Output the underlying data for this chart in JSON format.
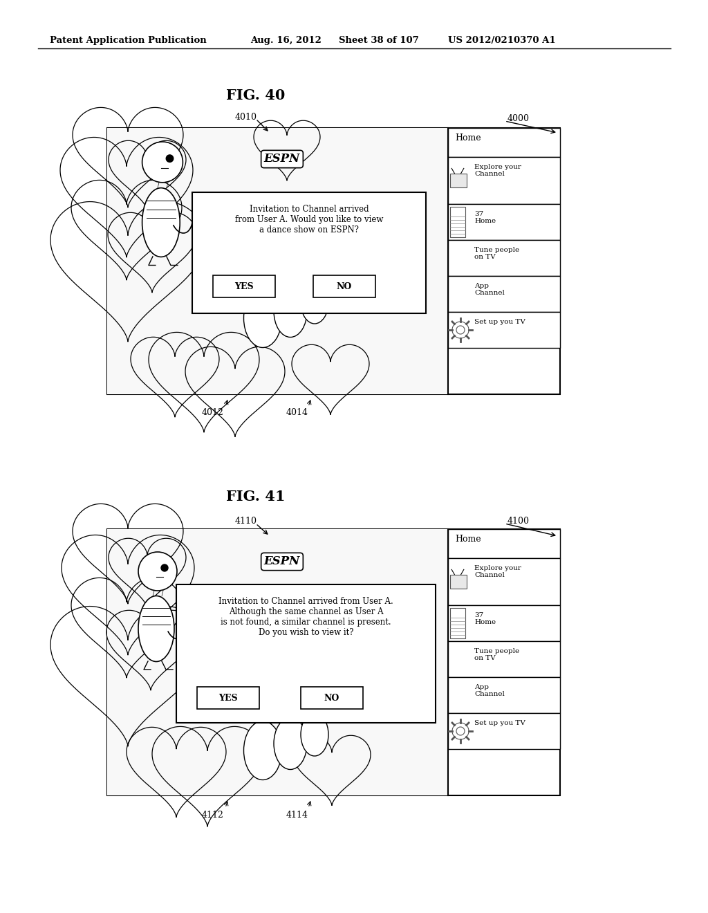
{
  "bg_color": "#ffffff",
  "header_text": "Patent Application Publication",
  "header_date": "Aug. 16, 2012",
  "header_sheet": "Sheet 38 of 107",
  "header_patent": "US 2012/0210370 A1",
  "fig40_title": "FIG. 40",
  "fig41_title": "FIG. 41",
  "fig40_label": "4000",
  "fig40_sublabel1": "4010",
  "fig40_sublabel2": "4012",
  "fig40_sublabel3": "4014",
  "fig41_label": "4100",
  "fig41_sublabel1": "4110",
  "fig41_sublabel2": "4112",
  "fig41_sublabel3": "4114",
  "menu_home": "Home",
  "menu_item1": "Explore your\nChannel",
  "menu_item2": "37\nHome",
  "menu_item3": "Tune people\non TV",
  "menu_item4": "App\nChannel",
  "menu_item5": "Set up you TV",
  "espn_text": "ESPN",
  "fig40_dialog_text": "Invitation to Channel arrived\nfrom User A. Would you like to view\na dance show on ESPN?",
  "fig41_dialog_text": "Invitation to Channel arrived from User A.\nAlthough the same channel as User A\nis not found, a similar channel is present.\nDo you wish to view it?",
  "yes_text": "YES",
  "no_text": "NO"
}
